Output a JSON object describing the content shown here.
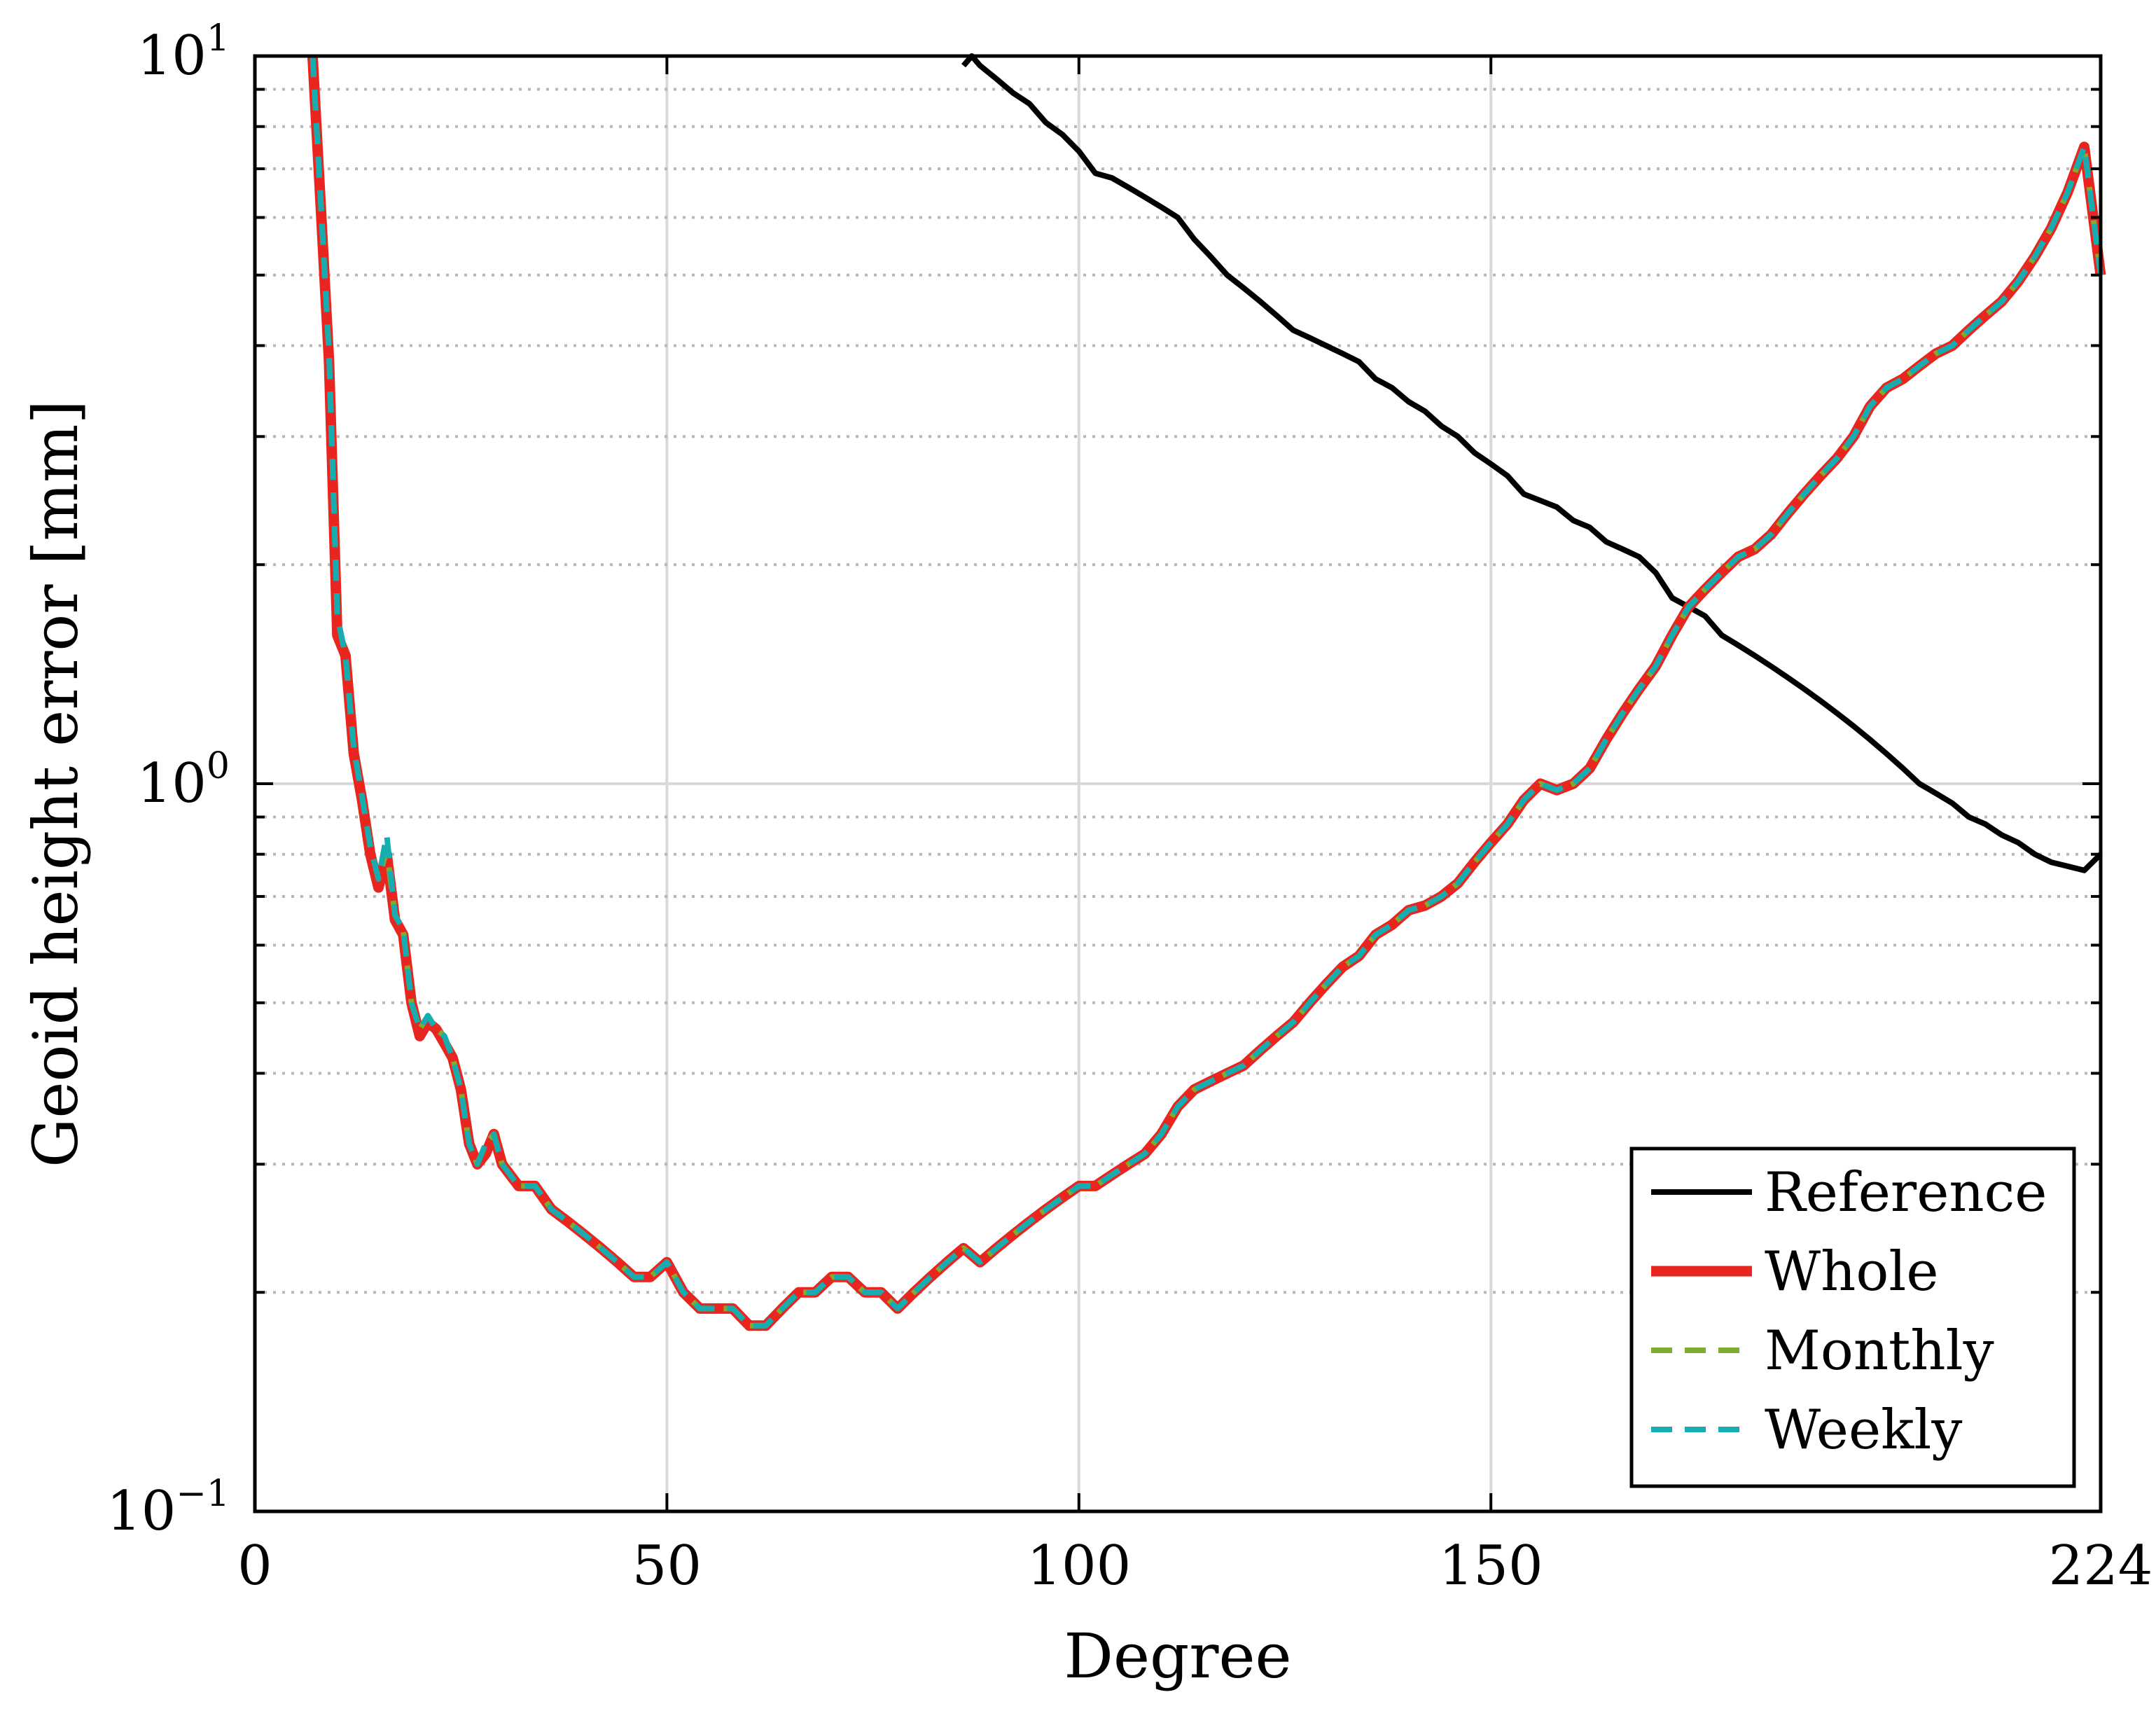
{
  "chart_data": {
    "type": "line",
    "title": "",
    "xlabel": "Degree",
    "ylabel": "Geoid height error [mm]",
    "xlim": [
      0,
      224
    ],
    "ylim": [
      0.1,
      10
    ],
    "yscale": "log",
    "grid": true,
    "legend_position": "bottom-right",
    "x_ticks": [
      {
        "value": 0,
        "label": "0"
      },
      {
        "value": 50,
        "label": "50"
      },
      {
        "value": 100,
        "label": "100"
      },
      {
        "value": 150,
        "label": "150"
      },
      {
        "value": 224,
        "label": "224"
      }
    ],
    "y_ticks": [
      {
        "value": 0.1,
        "base": "10",
        "exp": "−1"
      },
      {
        "value": 1,
        "base": "10",
        "exp": "0"
      },
      {
        "value": 10,
        "base": "10",
        "exp": "1"
      }
    ],
    "series": [
      {
        "name": "Reference",
        "color": "#000000",
        "style": "solid",
        "x": [
          86,
          87,
          88,
          90,
          92,
          94,
          96,
          98,
          100,
          102,
          104,
          106,
          108,
          110,
          112,
          114,
          116,
          118,
          120,
          122,
          124,
          126,
          128,
          130,
          132,
          134,
          136,
          138,
          140,
          142,
          144,
          146,
          148,
          150,
          152,
          154,
          156,
          158,
          160,
          162,
          164,
          166,
          168,
          170,
          172,
          174,
          176,
          178,
          180,
          182,
          184,
          186,
          188,
          190,
          192,
          194,
          196,
          198,
          200,
          202,
          204,
          206,
          208,
          210,
          212,
          214,
          216,
          218,
          220,
          222,
          224
        ],
        "y": [
          9.7,
          10.3,
          9.7,
          9.3,
          8.9,
          8.6,
          8.1,
          7.8,
          7.4,
          6.9,
          6.8,
          6.6,
          6.4,
          6.2,
          6.0,
          5.6,
          5.3,
          5.0,
          4.8,
          4.6,
          4.4,
          4.2,
          4.1,
          4.0,
          3.9,
          3.8,
          3.6,
          3.5,
          3.35,
          3.25,
          3.1,
          3.0,
          2.85,
          2.75,
          2.65,
          2.5,
          2.45,
          2.4,
          2.3,
          2.25,
          2.15,
          2.1,
          2.05,
          1.95,
          1.8,
          1.75,
          1.7,
          1.6,
          1.55,
          1.5,
          1.45,
          1.4,
          1.35,
          1.3,
          1.25,
          1.2,
          1.15,
          1.1,
          1.05,
          1.0,
          0.97,
          0.94,
          0.9,
          0.88,
          0.85,
          0.83,
          0.8,
          0.78,
          0.77,
          0.76,
          0.8
        ]
      },
      {
        "name": "Whole",
        "color": "#e8251f",
        "style": "solid",
        "x": [
          7,
          8,
          9,
          10,
          11,
          12,
          13,
          14,
          15,
          16,
          17,
          18,
          19,
          20,
          21,
          22,
          23,
          24,
          25,
          26,
          27,
          28,
          29,
          30,
          32,
          34,
          36,
          38,
          40,
          42,
          44,
          46,
          48,
          50,
          52,
          54,
          56,
          58,
          60,
          62,
          64,
          66,
          68,
          70,
          72,
          74,
          76,
          78,
          80,
          82,
          84,
          86,
          88,
          90,
          92,
          94,
          96,
          98,
          100,
          102,
          104,
          106,
          108,
          110,
          112,
          114,
          116,
          118,
          120,
          122,
          124,
          126,
          128,
          130,
          132,
          134,
          136,
          138,
          140,
          142,
          144,
          146,
          148,
          150,
          152,
          154,
          156,
          158,
          160,
          162,
          164,
          166,
          168,
          170,
          172,
          174,
          176,
          178,
          180,
          182,
          184,
          186,
          188,
          190,
          192,
          194,
          196,
          198,
          200,
          202,
          204,
          206,
          208,
          210,
          212,
          214,
          216,
          218,
          220,
          222,
          224
        ],
        "y": [
          10,
          6.2,
          3.8,
          1.6,
          1.5,
          1.1,
          0.95,
          0.8,
          0.72,
          0.8,
          0.65,
          0.62,
          0.5,
          0.45,
          0.47,
          0.46,
          0.44,
          0.42,
          0.38,
          0.32,
          0.3,
          0.31,
          0.33,
          0.3,
          0.28,
          0.28,
          0.26,
          0.25,
          0.24,
          0.23,
          0.22,
          0.21,
          0.21,
          0.22,
          0.2,
          0.19,
          0.19,
          0.19,
          0.18,
          0.18,
          0.19,
          0.2,
          0.2,
          0.21,
          0.21,
          0.2,
          0.2,
          0.19,
          0.2,
          0.21,
          0.22,
          0.23,
          0.22,
          0.23,
          0.24,
          0.25,
          0.26,
          0.27,
          0.28,
          0.28,
          0.29,
          0.3,
          0.31,
          0.33,
          0.36,
          0.38,
          0.39,
          0.4,
          0.41,
          0.43,
          0.45,
          0.47,
          0.5,
          0.53,
          0.56,
          0.58,
          0.62,
          0.64,
          0.67,
          0.68,
          0.7,
          0.73,
          0.78,
          0.83,
          0.88,
          0.95,
          1.0,
          0.98,
          1.0,
          1.05,
          1.15,
          1.25,
          1.35,
          1.45,
          1.6,
          1.75,
          1.85,
          1.95,
          2.05,
          2.1,
          2.2,
          2.35,
          2.5,
          2.65,
          2.8,
          3.0,
          3.3,
          3.5,
          3.6,
          3.75,
          3.9,
          4.0,
          4.2,
          4.4,
          4.6,
          4.9,
          5.3,
          5.8,
          6.5,
          7.5,
          5.0
        ]
      },
      {
        "name": "Monthly",
        "color": "#7fab2e",
        "style": "dashed",
        "x": [
          7,
          8,
          9,
          10,
          11,
          12,
          13,
          14,
          15,
          16,
          17,
          18,
          19,
          20,
          21,
          22,
          23,
          24,
          25,
          26,
          27,
          28,
          29,
          30,
          32,
          34,
          36,
          38,
          40,
          42,
          44,
          46,
          48,
          50,
          52,
          54,
          56,
          58,
          60,
          62,
          64,
          66,
          68,
          70,
          72,
          74,
          76,
          78,
          80,
          82,
          84,
          86,
          88,
          90,
          92,
          94,
          96,
          98,
          100,
          102,
          104,
          106,
          108,
          110,
          112,
          114,
          116,
          118,
          120,
          122,
          124,
          126,
          128,
          130,
          132,
          134,
          136,
          138,
          140,
          142,
          144,
          146,
          148,
          150,
          152,
          154,
          156,
          158,
          160,
          162,
          164,
          166,
          168,
          170,
          172,
          174,
          176,
          178,
          180,
          182,
          184,
          186,
          188,
          190,
          192,
          194,
          196,
          198,
          200,
          202,
          204,
          206,
          208,
          210,
          212,
          214,
          216,
          218,
          220,
          222,
          224
        ],
        "y": [
          10,
          6.3,
          3.9,
          1.7,
          1.5,
          1.12,
          0.96,
          0.82,
          0.74,
          0.81,
          0.66,
          0.63,
          0.5,
          0.46,
          0.48,
          0.46,
          0.45,
          0.42,
          0.38,
          0.32,
          0.3,
          0.32,
          0.33,
          0.3,
          0.28,
          0.28,
          0.26,
          0.25,
          0.24,
          0.23,
          0.22,
          0.21,
          0.21,
          0.22,
          0.2,
          0.19,
          0.19,
          0.19,
          0.18,
          0.18,
          0.19,
          0.2,
          0.2,
          0.21,
          0.21,
          0.2,
          0.2,
          0.19,
          0.2,
          0.21,
          0.22,
          0.23,
          0.22,
          0.23,
          0.24,
          0.25,
          0.26,
          0.27,
          0.28,
          0.28,
          0.29,
          0.3,
          0.31,
          0.33,
          0.36,
          0.38,
          0.39,
          0.4,
          0.41,
          0.43,
          0.45,
          0.47,
          0.5,
          0.53,
          0.56,
          0.58,
          0.62,
          0.64,
          0.67,
          0.68,
          0.7,
          0.73,
          0.78,
          0.83,
          0.88,
          0.95,
          1.0,
          0.98,
          1.0,
          1.05,
          1.15,
          1.25,
          1.35,
          1.45,
          1.6,
          1.75,
          1.85,
          1.95,
          2.05,
          2.1,
          2.2,
          2.35,
          2.5,
          2.65,
          2.8,
          3.0,
          3.3,
          3.5,
          3.6,
          3.75,
          3.9,
          4.0,
          4.2,
          4.4,
          4.6,
          4.9,
          5.3,
          5.8,
          6.5,
          7.5,
          5.0
        ]
      },
      {
        "name": "Weekly",
        "color": "#17adb0",
        "style": "dashed",
        "x": [
          7,
          8,
          9,
          10,
          11,
          12,
          13,
          14,
          15,
          16,
          17,
          18,
          19,
          20,
          21,
          22,
          23,
          24,
          25,
          26,
          27,
          28,
          29,
          30,
          32,
          34,
          36,
          38,
          40,
          42,
          44,
          46,
          48,
          50,
          52,
          54,
          56,
          58,
          60,
          62,
          64,
          66,
          68,
          70,
          72,
          74,
          76,
          78,
          80,
          82,
          84,
          86,
          88,
          90,
          92,
          94,
          96,
          98,
          100,
          102,
          104,
          106,
          108,
          110,
          112,
          114,
          116,
          118,
          120,
          122,
          124,
          126,
          128,
          130,
          132,
          134,
          136,
          138,
          140,
          142,
          144,
          146,
          148,
          150,
          152,
          154,
          156,
          158,
          160,
          162,
          164,
          166,
          168,
          170,
          172,
          174,
          176,
          178,
          180,
          182,
          184,
          186,
          188,
          190,
          192,
          194,
          196,
          198,
          200,
          202,
          204,
          206,
          208,
          210,
          212,
          214,
          216,
          218,
          220,
          222,
          224
        ],
        "y": [
          10,
          6.3,
          3.9,
          1.7,
          1.5,
          1.12,
          0.96,
          0.82,
          0.74,
          0.85,
          0.66,
          0.63,
          0.5,
          0.46,
          0.48,
          0.46,
          0.45,
          0.42,
          0.38,
          0.32,
          0.3,
          0.32,
          0.33,
          0.3,
          0.28,
          0.28,
          0.26,
          0.25,
          0.24,
          0.23,
          0.22,
          0.21,
          0.21,
          0.22,
          0.2,
          0.19,
          0.19,
          0.19,
          0.18,
          0.18,
          0.19,
          0.2,
          0.2,
          0.21,
          0.21,
          0.2,
          0.2,
          0.19,
          0.2,
          0.21,
          0.22,
          0.23,
          0.22,
          0.23,
          0.24,
          0.25,
          0.26,
          0.27,
          0.28,
          0.28,
          0.29,
          0.3,
          0.31,
          0.33,
          0.36,
          0.38,
          0.39,
          0.4,
          0.41,
          0.43,
          0.45,
          0.47,
          0.5,
          0.53,
          0.56,
          0.58,
          0.62,
          0.64,
          0.67,
          0.68,
          0.7,
          0.73,
          0.78,
          0.83,
          0.88,
          0.95,
          1.0,
          0.98,
          1.0,
          1.05,
          1.15,
          1.25,
          1.35,
          1.45,
          1.6,
          1.75,
          1.85,
          1.95,
          2.05,
          2.1,
          2.2,
          2.35,
          2.5,
          2.65,
          2.8,
          3.0,
          3.3,
          3.5,
          3.6,
          3.75,
          3.9,
          4.0,
          4.2,
          4.4,
          4.6,
          4.9,
          5.3,
          5.8,
          6.5,
          7.5,
          5.0
        ]
      }
    ]
  }
}
